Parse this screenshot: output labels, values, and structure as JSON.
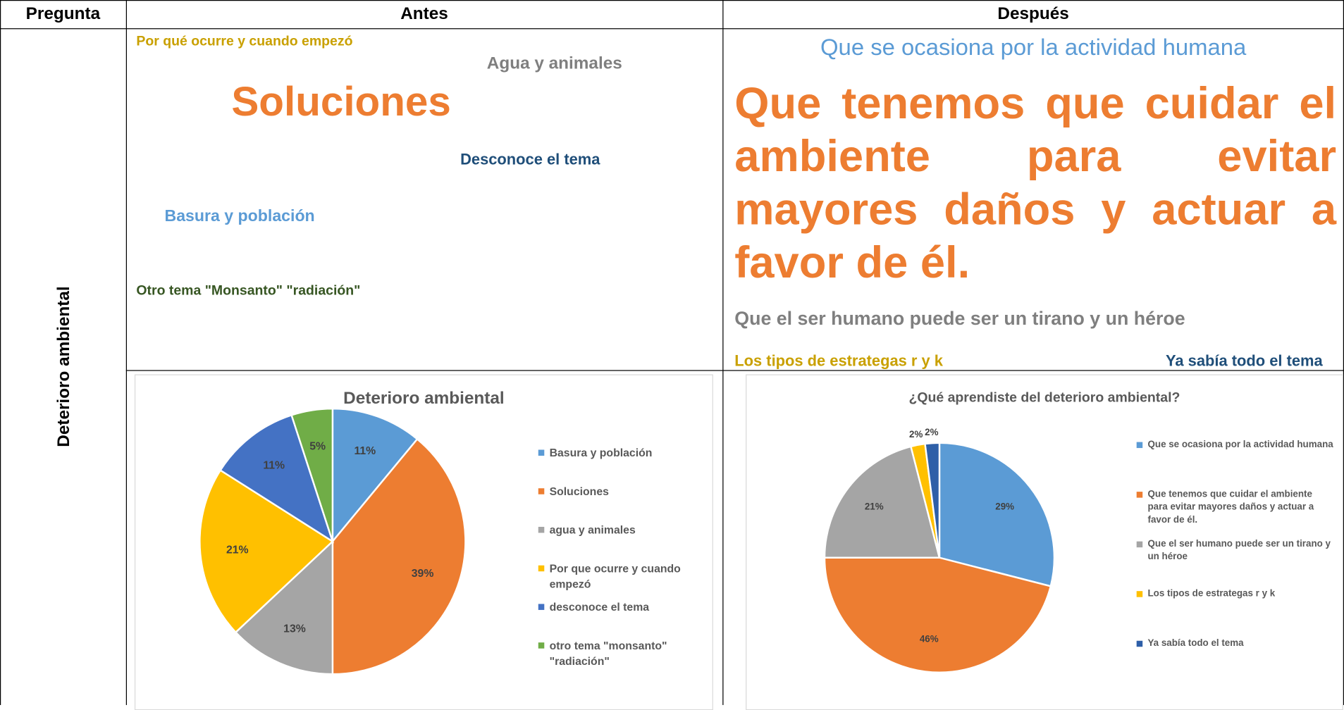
{
  "header": {
    "pregunta": "Pregunta",
    "antes": "Antes",
    "despues": "Después"
  },
  "row_label": "Deterioro ambiental",
  "antes_words": [
    "Por qué ocurre y cuando empezó",
    "Agua y animales",
    "Soluciones",
    "Desconoce el tema",
    "Basura y población",
    "Otro tema  \"Monsanto\" \"radiación\""
  ],
  "despues_words": [
    "Que se ocasiona por la actividad humana",
    "Que tenemos que cuidar el ambiente para evitar mayores daños y actuar a favor de él.",
    "Que el ser humano puede ser un tirano y un héroe",
    "Los tipos de estrategas r y k",
    "Ya sabía todo el  tema"
  ],
  "chart_data": [
    {
      "type": "pie",
      "title": "Deterioro ambiental",
      "categories": [
        "Basura y población",
        "Soluciones",
        "agua  y animales",
        "Por que ocurre y cuando empezó",
        "desconoce  el tema",
        "otro tema  \"monsanto\" \"radiación\""
      ],
      "values": [
        11,
        39,
        13,
        21,
        11,
        5
      ],
      "value_labels": [
        "11%",
        "39%",
        "13%",
        "21%",
        "11%",
        "5%"
      ],
      "colors": [
        "#5b9bd5",
        "#ed7d31",
        "#a5a5a5",
        "#ffc000",
        "#4472c4",
        "#70ad47"
      ],
      "legend": "right"
    },
    {
      "type": "pie",
      "title": "¿Qué aprendiste del deterioro ambiental?",
      "categories": [
        "Que se ocasiona por la actividad humana",
        "Que tenemos que cuidar el ambiente para evitar mayores daños y actuar a favor de él.",
        "Que el ser humano puede ser un tirano y un héroe",
        "Los tipos de estrategas r y k",
        "Ya sabía todo el  tema"
      ],
      "values": [
        29,
        46,
        21,
        2,
        2
      ],
      "value_labels": [
        "29%",
        "46%",
        "21%",
        "2%",
        "2%"
      ],
      "colors": [
        "#5b9bd5",
        "#ed7d31",
        "#a5a5a5",
        "#ffc000",
        "#2e5fa8"
      ],
      "legend": "right"
    }
  ]
}
